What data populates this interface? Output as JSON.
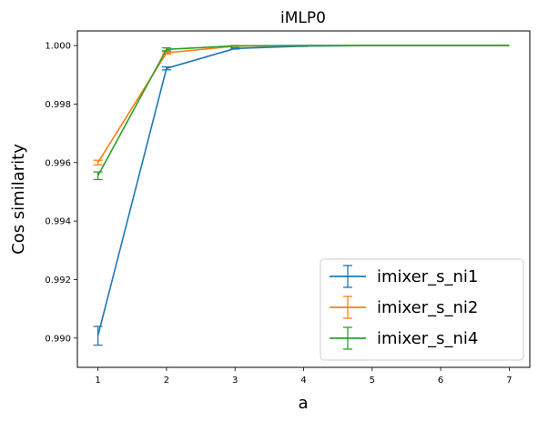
{
  "chart_data": {
    "type": "line",
    "title": "iMLP0",
    "xlabel": "a",
    "ylabel": "Cos similarity",
    "x": [
      1,
      2,
      3,
      4,
      5,
      6,
      7
    ],
    "xlim": [
      0.7,
      7.3
    ],
    "ylim": [
      0.989,
      1.0005
    ],
    "xticks": [
      1,
      2,
      3,
      4,
      5,
      6,
      7
    ],
    "yticks": [
      0.99,
      0.992,
      0.994,
      0.996,
      0.998,
      1.0
    ],
    "ytick_labels": [
      "0.990",
      "0.992",
      "0.994",
      "0.996",
      "0.998",
      "1.000"
    ],
    "legend_position": "lower-right",
    "grid": false,
    "series": [
      {
        "name": "imixer_s_ni1",
        "color": "#1f77b4",
        "values": [
          0.99008,
          0.99922,
          0.9999,
          0.99998,
          1.0,
          1.0,
          1.0
        ],
        "errors": [
          0.00032,
          5e-05,
          2e-05,
          1e-05,
          0.0,
          0.0,
          0.0
        ]
      },
      {
        "name": "imixer_s_ni2",
        "color": "#ff7f0e",
        "values": [
          0.996,
          0.99975,
          0.99998,
          1.0,
          1.0,
          1.0,
          1.0
        ],
        "errors": [
          8e-05,
          4e-05,
          1e-05,
          0.0,
          0.0,
          0.0,
          0.0
        ]
      },
      {
        "name": "imixer_s_ni4",
        "color": "#2ca02c",
        "values": [
          0.99555,
          0.99987,
          0.99999,
          1.0,
          1.0,
          1.0,
          1.0
        ],
        "errors": [
          0.00013,
          5e-05,
          1e-05,
          0.0,
          0.0,
          0.0,
          0.0
        ]
      }
    ]
  }
}
